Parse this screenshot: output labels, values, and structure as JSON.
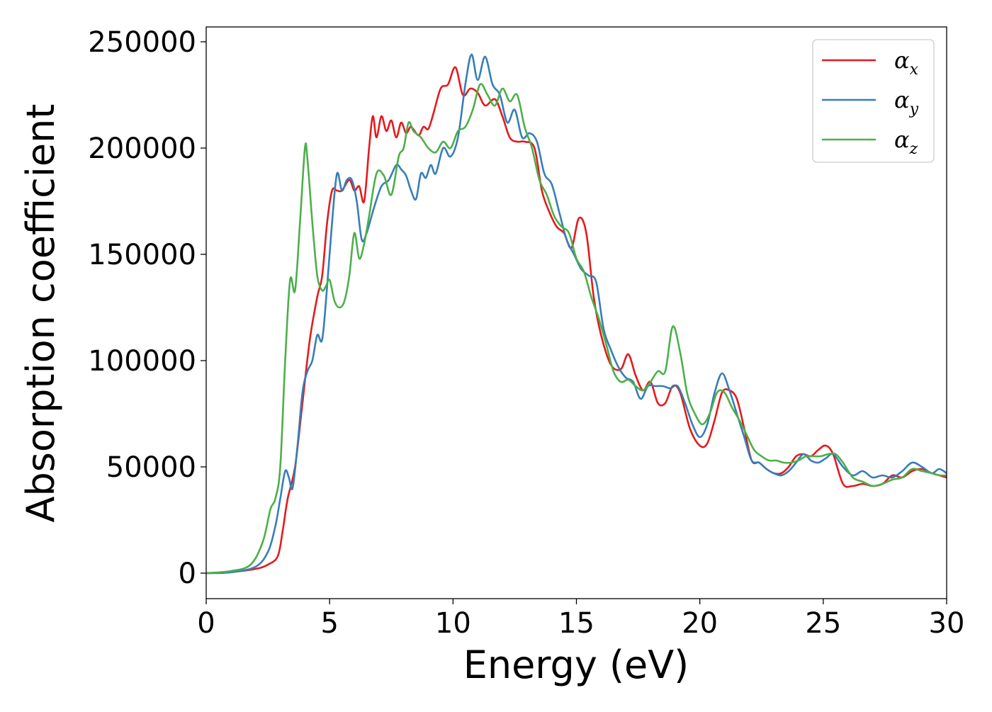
{
  "chart_data": {
    "type": "line",
    "title": "",
    "xlabel": "Energy (eV)",
    "ylabel": "Absorption coefficient",
    "xlim": [
      0,
      30
    ],
    "ylim": [
      -12000,
      257000
    ],
    "xticks": [
      0,
      5,
      10,
      15,
      20,
      25,
      30
    ],
    "yticks": [
      0,
      50000,
      100000,
      150000,
      200000,
      250000
    ],
    "grid": false,
    "legend_position": "top-right",
    "series": [
      {
        "name": "α_x",
        "label_base": "α",
        "label_sub": "x",
        "color": "#e41a1c",
        "x": [
          0,
          1,
          2,
          2.5,
          2.9,
          3.1,
          3.3,
          3.6,
          3.9,
          4.2,
          4.5,
          4.7,
          4.9,
          5.1,
          5.3,
          5.5,
          5.8,
          6.0,
          6.2,
          6.4,
          6.6,
          6.75,
          6.9,
          7.1,
          7.3,
          7.5,
          7.7,
          7.9,
          8.1,
          8.3,
          8.6,
          8.8,
          9.0,
          9.2,
          9.5,
          9.8,
          10.1,
          10.4,
          10.7,
          11.0,
          11.3,
          11.7,
          12.0,
          12.3,
          12.6,
          12.9,
          13.3,
          13.6,
          13.9,
          14.2,
          14.5,
          14.8,
          15.1,
          15.4,
          15.7,
          16.0,
          16.4,
          16.8,
          17.1,
          17.4,
          17.7,
          18.0,
          18.3,
          18.6,
          18.9,
          19.2,
          19.6,
          20.0,
          20.3,
          20.6,
          20.9,
          21.2,
          21.5,
          21.8,
          22.1,
          22.4,
          22.7,
          23.0,
          23.3,
          23.6,
          23.9,
          24.2,
          24.5,
          24.8,
          25.1,
          25.4,
          25.8,
          26.2,
          26.6,
          27.0,
          27.4,
          27.8,
          28.2,
          28.6,
          29.0,
          29.4,
          29.7,
          30
        ],
        "y": [
          0,
          500,
          2000,
          4000,
          8000,
          20000,
          35000,
          50000,
          80000,
          110000,
          130000,
          140000,
          165000,
          180000,
          180000,
          180000,
          185000,
          180000,
          182000,
          175000,
          200000,
          215000,
          205000,
          215000,
          208000,
          213000,
          205000,
          212000,
          207000,
          210000,
          206000,
          210000,
          209000,
          216000,
          228000,
          230000,
          238000,
          225000,
          228000,
          226000,
          220000,
          223000,
          215000,
          205000,
          203000,
          203000,
          200000,
          180000,
          170000,
          163000,
          160000,
          153000,
          167000,
          160000,
          130000,
          112000,
          98000,
          96000,
          103000,
          93000,
          86000,
          90000,
          80000,
          80000,
          88000,
          85000,
          68000,
          60000,
          61000,
          72000,
          85000,
          86000,
          82000,
          68000,
          53000,
          52000,
          49000,
          47000,
          47000,
          50000,
          55000,
          56000,
          55000,
          58000,
          60000,
          56000,
          42000,
          41000,
          42000,
          41000,
          42000,
          46000,
          45000,
          48000,
          49000,
          47000,
          46000,
          45000
        ]
      },
      {
        "name": "α_y",
        "label_base": "α",
        "label_sub": "y",
        "color": "#377eb8",
        "x": [
          0,
          1,
          2,
          2.5,
          2.8,
          3.0,
          3.2,
          3.35,
          3.5,
          3.7,
          3.9,
          4.1,
          4.3,
          4.5,
          4.7,
          4.9,
          5.1,
          5.3,
          5.5,
          5.7,
          5.9,
          6.1,
          6.3,
          6.5,
          6.8,
          7.1,
          7.4,
          7.7,
          7.9,
          8.1,
          8.3,
          8.5,
          8.7,
          8.9,
          9.1,
          9.3,
          9.6,
          9.9,
          10.2,
          10.5,
          10.75,
          11.0,
          11.3,
          11.6,
          11.9,
          12.2,
          12.5,
          12.8,
          13.1,
          13.4,
          13.7,
          14.0,
          14.3,
          14.6,
          14.9,
          15.2,
          15.5,
          15.8,
          16.1,
          16.4,
          16.7,
          17.0,
          17.3,
          17.6,
          17.9,
          18.2,
          18.5,
          18.8,
          19.1,
          19.4,
          19.7,
          20.0,
          20.3,
          20.6,
          20.9,
          21.2,
          21.5,
          21.8,
          22.1,
          22.4,
          22.7,
          23.0,
          23.3,
          23.6,
          23.9,
          24.2,
          24.5,
          24.8,
          25.1,
          25.4,
          25.8,
          26.2,
          26.6,
          27.0,
          27.4,
          27.8,
          28.2,
          28.6,
          29.0,
          29.4,
          29.7,
          30
        ],
        "y": [
          0,
          400,
          3000,
          10000,
          22000,
          35000,
          48000,
          45000,
          40000,
          60000,
          85000,
          95000,
          100000,
          112000,
          110000,
          135000,
          165000,
          188000,
          180000,
          185000,
          185000,
          175000,
          157000,
          160000,
          172000,
          182000,
          185000,
          192000,
          190000,
          187000,
          180000,
          176000,
          188000,
          186000,
          192000,
          188000,
          200000,
          196000,
          205000,
          230000,
          244000,
          232000,
          243000,
          230000,
          225000,
          212000,
          218000,
          205000,
          207000,
          203000,
          188000,
          183000,
          170000,
          157000,
          150000,
          143000,
          140000,
          137000,
          115000,
          105000,
          97000,
          92000,
          90000,
          82000,
          88000,
          88000,
          88000,
          87000,
          88000,
          80000,
          70000,
          64000,
          70000,
          85000,
          94000,
          86000,
          75000,
          64000,
          53000,
          52000,
          49000,
          47000,
          46000,
          48000,
          52000,
          56000,
          53000,
          52000,
          54000,
          56000,
          50000,
          46000,
          48000,
          45000,
          46000,
          45000,
          48000,
          52000,
          50000,
          47000,
          49000,
          47000
        ]
      },
      {
        "name": "α_z",
        "label_base": "α",
        "label_sub": "z",
        "color": "#4daf4a",
        "x": [
          0,
          1,
          1.8,
          2.3,
          2.6,
          2.8,
          3.0,
          3.2,
          3.4,
          3.6,
          3.8,
          4.0,
          4.1,
          4.3,
          4.5,
          4.7,
          4.85,
          5.0,
          5.2,
          5.4,
          5.6,
          5.8,
          6.0,
          6.2,
          6.4,
          6.6,
          6.9,
          7.2,
          7.5,
          7.8,
          8.0,
          8.2,
          8.4,
          8.7,
          9.0,
          9.3,
          9.6,
          9.9,
          10.2,
          10.5,
          10.8,
          11.1,
          11.4,
          11.7,
          12.0,
          12.3,
          12.6,
          12.9,
          13.2,
          13.5,
          13.8,
          14.1,
          14.4,
          14.7,
          15.0,
          15.3,
          15.6,
          15.9,
          16.2,
          16.5,
          16.8,
          17.1,
          17.4,
          17.7,
          18.0,
          18.3,
          18.6,
          18.9,
          19.2,
          19.5,
          19.8,
          20.1,
          20.4,
          20.7,
          21.0,
          21.3,
          21.6,
          21.9,
          22.2,
          22.5,
          22.8,
          23.1,
          23.4,
          23.7,
          24.0,
          24.3,
          24.6,
          24.9,
          25.2,
          25.5,
          25.8,
          26.2,
          26.6,
          27.0,
          27.4,
          27.8,
          28.2,
          28.6,
          29.0,
          29.4,
          29.7,
          30
        ],
        "y": [
          0,
          1000,
          4000,
          15000,
          30000,
          35000,
          50000,
          100000,
          138000,
          133000,
          165000,
          200000,
          195000,
          165000,
          140000,
          133000,
          135000,
          138000,
          128000,
          125000,
          128000,
          140000,
          160000,
          148000,
          155000,
          168000,
          188000,
          187000,
          178000,
          196000,
          200000,
          212000,
          208000,
          205000,
          200000,
          198000,
          203000,
          200000,
          208000,
          210000,
          218000,
          230000,
          225000,
          220000,
          228000,
          222000,
          225000,
          210000,
          200000,
          185000,
          178000,
          168000,
          163000,
          160000,
          148000,
          142000,
          130000,
          120000,
          108000,
          95000,
          90000,
          91000,
          88000,
          86000,
          90000,
          95000,
          95000,
          116000,
          104000,
          84000,
          75000,
          70000,
          75000,
          85000,
          85000,
          78000,
          72000,
          65000,
          58000,
          55000,
          53000,
          53000,
          52000,
          52000,
          53000,
          55000,
          55000,
          55000,
          56000,
          56000,
          52000,
          45000,
          43000,
          41000,
          42000,
          44000,
          45000,
          49000,
          48000,
          47000,
          46000,
          46000
        ]
      }
    ]
  }
}
